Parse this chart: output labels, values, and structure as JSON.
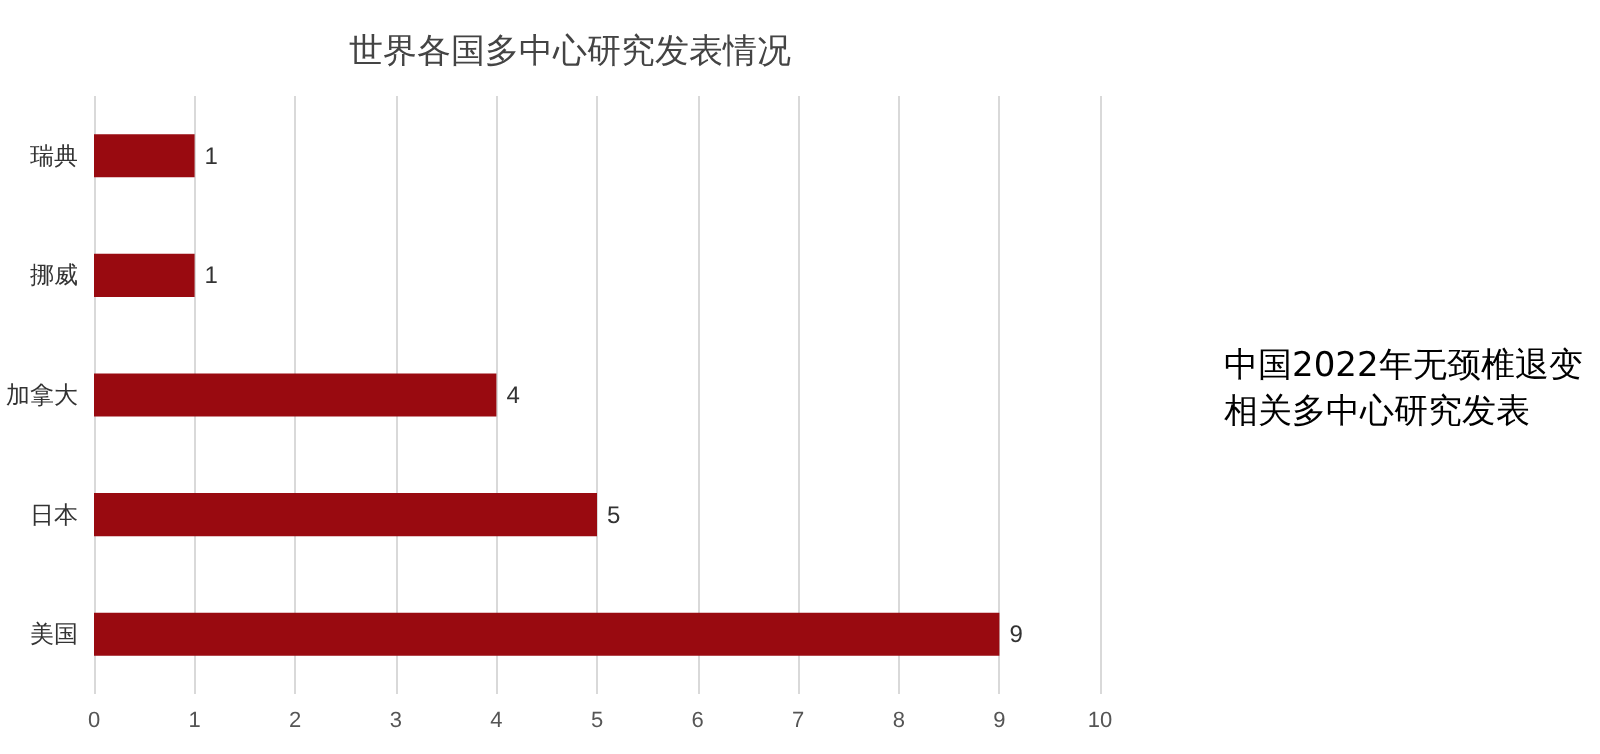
{
  "chart_data": {
    "type": "bar",
    "orientation": "horizontal",
    "title": "世界各国多中心研究发表情况",
    "categories": [
      "瑞典",
      "挪威",
      "加拿大",
      "日本",
      "美国"
    ],
    "values": [
      1,
      1,
      4,
      5,
      9
    ],
    "color": "#990a10",
    "xlim": [
      0,
      10
    ],
    "xticks": [
      0,
      1,
      2,
      3,
      4,
      5,
      6,
      7,
      8,
      9,
      10
    ],
    "grid": "x",
    "data_labels": true,
    "annotations": [
      "中国2022年无颈椎退变相关多中心研究发表"
    ]
  }
}
